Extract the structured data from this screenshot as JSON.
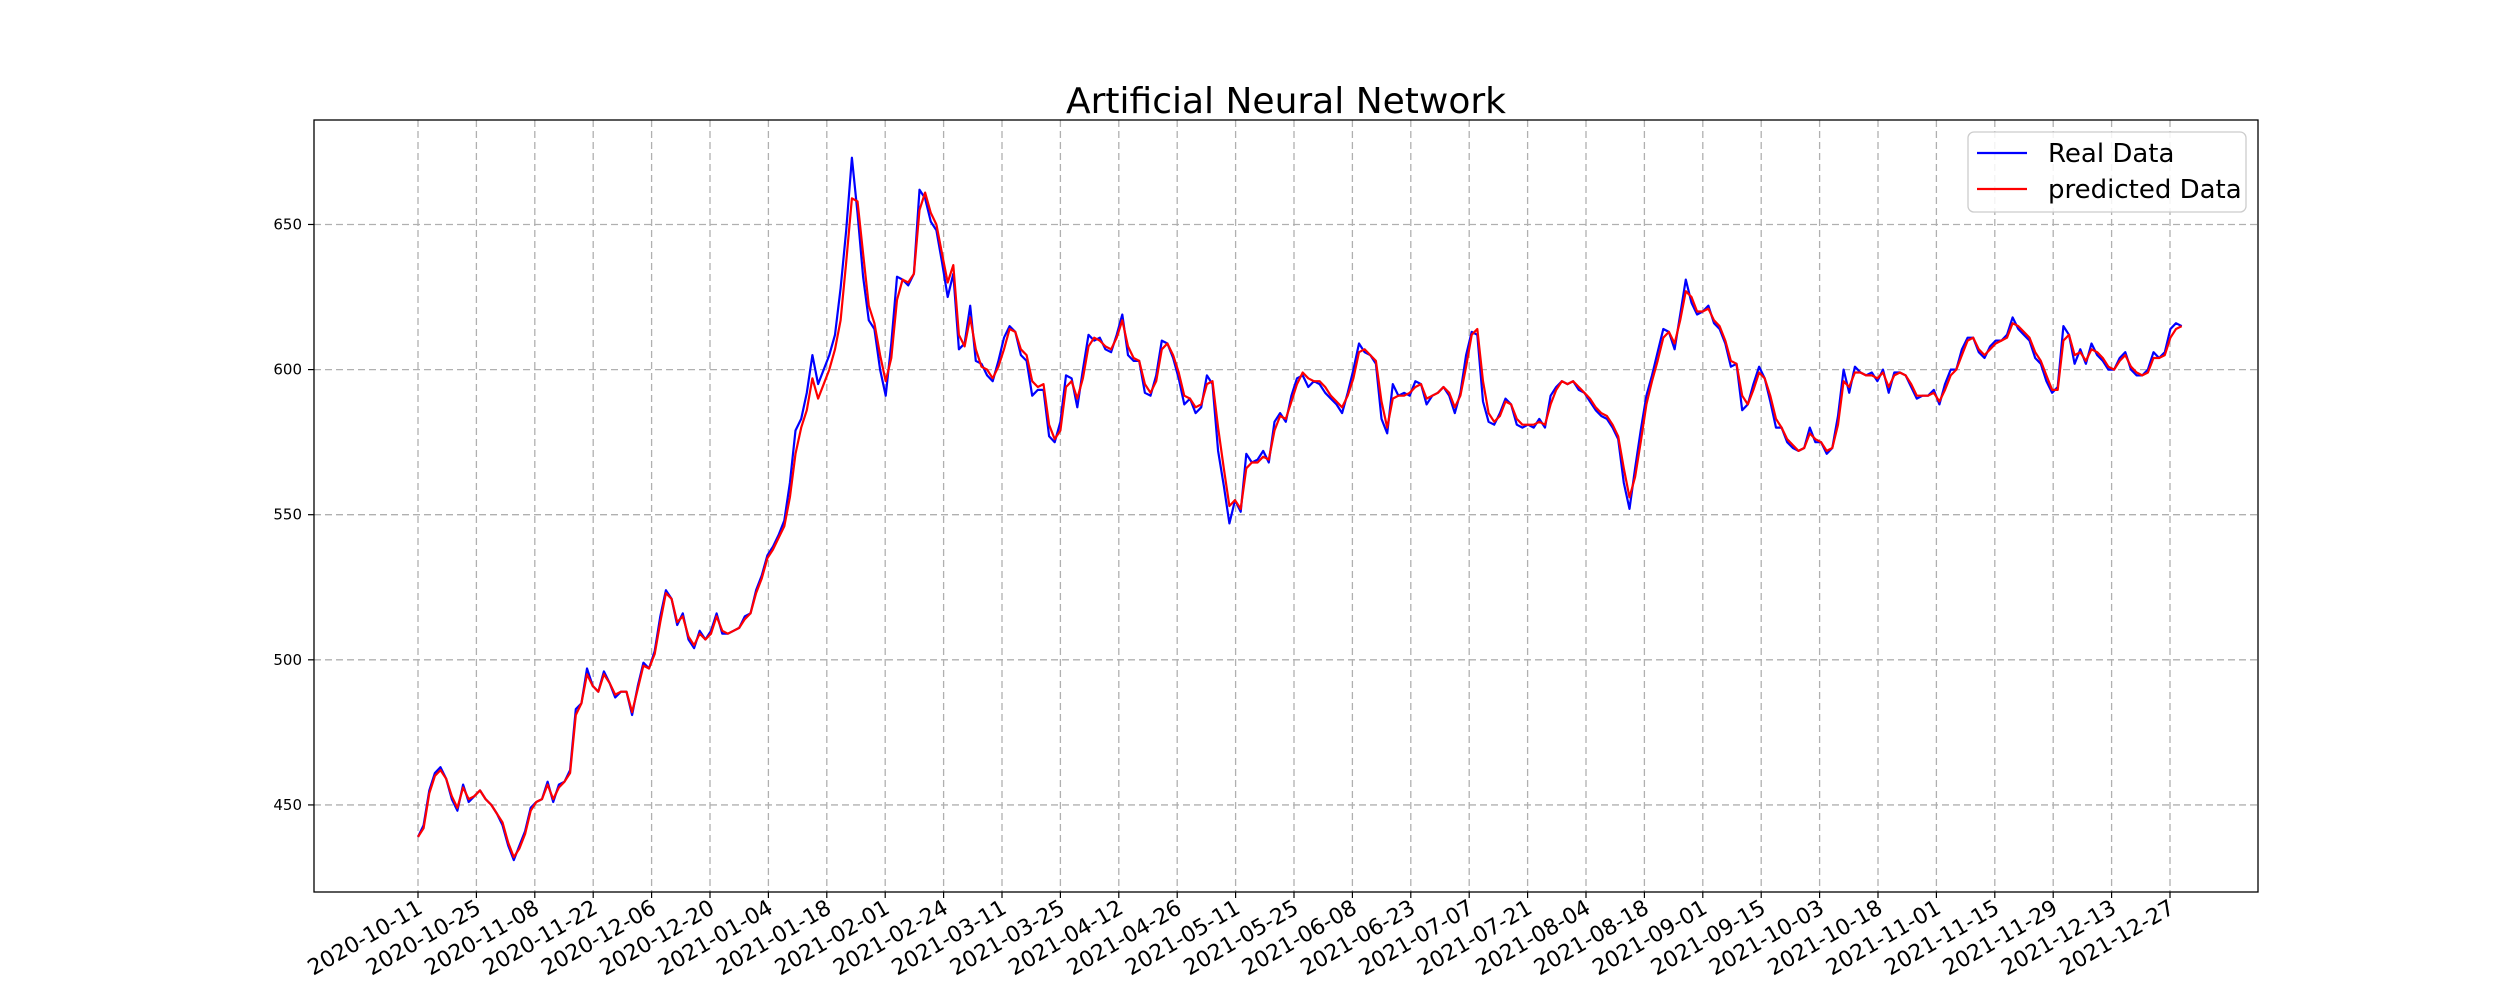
{
  "chart_data": {
    "type": "line",
    "title": "Artificial Neural Network",
    "xlabel": "",
    "ylabel": "",
    "x_tick_labels": [
      "2020-10-11",
      "2020-10-25",
      "2020-11-08",
      "2020-11-22",
      "2020-12-06",
      "2020-12-20",
      "2021-01-04",
      "2021-01-18",
      "2021-02-01",
      "2021-02-24",
      "2021-03-11",
      "2021-03-25",
      "2021-04-12",
      "2021-04-26",
      "2021-05-11",
      "2021-05-25",
      "2021-06-08",
      "2021-06-23",
      "2021-07-07",
      "2021-07-21",
      "2021-08-04",
      "2021-08-18",
      "2021-09-01",
      "2021-09-15",
      "2021-10-03",
      "2021-10-18",
      "2021-11-01",
      "2021-11-15",
      "2021-11-29",
      "2021-12-13",
      "2021-12-27"
    ],
    "y_ticks": [
      450,
      500,
      550,
      600,
      650
    ],
    "ylim": [
      420,
      686
    ],
    "grid": true,
    "legend_position": "top-right",
    "series_x_range": [
      0,
      30.2
    ],
    "series": [
      {
        "name": "Real Data",
        "color": "#0000ff",
        "start_index": 0,
        "values": [
          439,
          443,
          455,
          461,
          463,
          459,
          452,
          448,
          457,
          451,
          453,
          455,
          452,
          450,
          447,
          443,
          436,
          431,
          436,
          441,
          449,
          451,
          452,
          458,
          451,
          457,
          458,
          462,
          483,
          485,
          497,
          491,
          489,
          496,
          492,
          487,
          489,
          489,
          481,
          491,
          499,
          497,
          503,
          515,
          524,
          521,
          512,
          516,
          507,
          504,
          510,
          507,
          510,
          516,
          509,
          509,
          510,
          511,
          515,
          516,
          524,
          529,
          536,
          539,
          543,
          548,
          561,
          579,
          583,
          592,
          605,
          595,
          600,
          605,
          612,
          628,
          648,
          673,
          654,
          632,
          617,
          614,
          600,
          591,
          609,
          632,
          631,
          629,
          633,
          662,
          659,
          651,
          648,
          637,
          625,
          633,
          607,
          609,
          622,
          603,
          602,
          598,
          596,
          603,
          611,
          615,
          613,
          605,
          603,
          591,
          593,
          593,
          577,
          575,
          582,
          598,
          597,
          587,
          600,
          612,
          610,
          611,
          607,
          606,
          612,
          619,
          605,
          603,
          603,
          592,
          591,
          598,
          610,
          609,
          604,
          597,
          588,
          590,
          585,
          587,
          598,
          595,
          572,
          560,
          547,
          555,
          551,
          571,
          568,
          569,
          572,
          568,
          582,
          585,
          582,
          591,
          597,
          598,
          594,
          596,
          595,
          592,
          590,
          588,
          585,
          592,
          600,
          609,
          606,
          605,
          602,
          583,
          578,
          595,
          591,
          592,
          591,
          596,
          595,
          588,
          591,
          592,
          594,
          591,
          585,
          592,
          605,
          613,
          612,
          589,
          582,
          581,
          585,
          590,
          588,
          581,
          580,
          581,
          580,
          583,
          580,
          591,
          594,
          596,
          595,
          596,
          593,
          592,
          589,
          586,
          584,
          583,
          580,
          576,
          561,
          552,
          566,
          579,
          591,
          598,
          606,
          614,
          613,
          607,
          619,
          631,
          623,
          619,
          620,
          622,
          616,
          614,
          609,
          601,
          602,
          586,
          588,
          595,
          601,
          597,
          589,
          580,
          580,
          575,
          573,
          572,
          573,
          580,
          575,
          575,
          571,
          573,
          584,
          600,
          592,
          601,
          599,
          598,
          599,
          596,
          600,
          592,
          599,
          599,
          598,
          594,
          590,
          591,
          591,
          593,
          588,
          595,
          600,
          600,
          607,
          611,
          611,
          606,
          604,
          608,
          610,
          610,
          612,
          618,
          614,
          612,
          610,
          604,
          602,
          596,
          592,
          594,
          615,
          612,
          602,
          607,
          602,
          609,
          605,
          603,
          600,
          600,
          604,
          606,
          600,
          598,
          598,
          600,
          606,
          604,
          606,
          614,
          616,
          615
        ]
      },
      {
        "name": "predicted Data",
        "color": "#ff0000",
        "start_index": 0,
        "values": [
          439,
          442,
          454,
          460,
          462,
          459,
          453,
          449,
          456,
          452,
          453,
          455,
          452,
          450,
          447,
          444,
          437,
          432,
          435,
          440,
          448,
          451,
          452,
          457,
          452,
          456,
          458,
          461,
          481,
          485,
          495,
          491,
          489,
          495,
          492,
          488,
          489,
          489,
          482,
          490,
          498,
          497,
          502,
          513,
          523,
          521,
          513,
          515,
          508,
          505,
          509,
          507,
          509,
          515,
          510,
          509,
          510,
          511,
          514,
          516,
          523,
          528,
          535,
          538,
          542,
          546,
          556,
          571,
          580,
          586,
          597,
          590,
          595,
          600,
          607,
          617,
          637,
          659,
          658,
          640,
          622,
          616,
          605,
          596,
          604,
          624,
          631,
          630,
          633,
          655,
          661,
          654,
          650,
          640,
          630,
          636,
          612,
          608,
          618,
          607,
          601,
          600,
          597,
          601,
          607,
          614,
          613,
          607,
          605,
          596,
          594,
          595,
          581,
          576,
          579,
          594,
          596,
          590,
          597,
          608,
          611,
          610,
          608,
          607,
          611,
          617,
          608,
          604,
          603,
          595,
          592,
          596,
          607,
          609,
          605,
          599,
          591,
          590,
          587,
          588,
          595,
          596,
          580,
          566,
          553,
          555,
          552,
          566,
          568,
          568,
          570,
          569,
          579,
          584,
          583,
          589,
          595,
          599,
          597,
          596,
          596,
          594,
          591,
          589,
          587,
          591,
          597,
          606,
          607,
          605,
          603,
          589,
          580,
          590,
          591,
          591,
          592,
          594,
          595,
          590,
          591,
          592,
          594,
          592,
          587,
          591,
          601,
          612,
          614,
          596,
          585,
          582,
          584,
          589,
          588,
          583,
          581,
          581,
          581,
          582,
          581,
          588,
          593,
          596,
          595,
          596,
          594,
          592,
          590,
          587,
          585,
          584,
          581,
          577,
          566,
          556,
          563,
          575,
          588,
          596,
          603,
          611,
          613,
          609,
          617,
          627,
          625,
          620,
          620,
          621,
          617,
          615,
          610,
          603,
          602,
          591,
          588,
          593,
          599,
          597,
          591,
          583,
          580,
          576,
          574,
          572,
          573,
          578,
          576,
          575,
          572,
          573,
          581,
          596,
          594,
          599,
          599,
          598,
          598,
          597,
          599,
          594,
          598,
          599,
          598,
          595,
          591,
          591,
          591,
          592,
          589,
          593,
          598,
          600,
          605,
          610,
          611,
          607,
          605,
          607,
          609,
          610,
          611,
          616,
          615,
          613,
          611,
          606,
          603,
          598,
          593,
          593,
          610,
          612,
          605,
          606,
          603,
          607,
          606,
          604,
          601,
          600,
          603,
          605,
          601,
          599,
          598,
          599,
          604,
          604,
          605,
          611,
          614,
          615
        ]
      }
    ]
  }
}
